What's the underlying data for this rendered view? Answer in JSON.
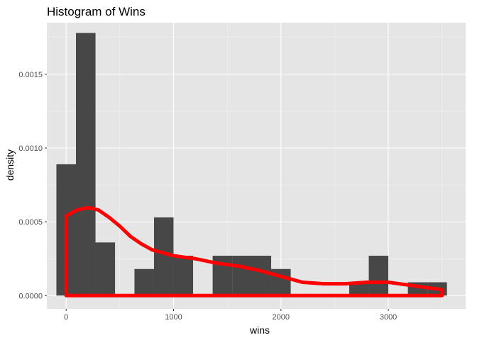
{
  "chart_data": {
    "type": "bar",
    "title": "Histogram of Wins",
    "xlabel": "wins",
    "ylabel": "density",
    "xlim": [
      -180,
      3720
    ],
    "ylim": [
      -9e-05,
      0.00185
    ],
    "x_ticks": [
      0,
      1000,
      2000,
      3000
    ],
    "x_tick_labels": [
      "0",
      "1000",
      "2000",
      "3000"
    ],
    "y_ticks": [
      0.0,
      0.0005,
      0.001,
      0.0015
    ],
    "y_tick_labels": [
      "0.0000",
      "0.0005",
      "0.0010",
      "0.0015"
    ],
    "grid": true,
    "bin_width": 182,
    "bins": [
      {
        "start": -91,
        "end": 91,
        "density": 0.00089
      },
      {
        "start": 91,
        "end": 273,
        "density": 0.00178
      },
      {
        "start": 273,
        "end": 455,
        "density": 0.00036
      },
      {
        "start": 636,
        "end": 818,
        "density": 0.00018
      },
      {
        "start": 818,
        "end": 1000,
        "density": 0.00053
      },
      {
        "start": 1000,
        "end": 1182,
        "density": 0.00027
      },
      {
        "start": 1364,
        "end": 1546,
        "density": 0.00027
      },
      {
        "start": 1546,
        "end": 1727,
        "density": 0.00027
      },
      {
        "start": 1727,
        "end": 1909,
        "density": 0.00027
      },
      {
        "start": 1909,
        "end": 2091,
        "density": 0.00018
      },
      {
        "start": 2636,
        "end": 2818,
        "density": 9e-05
      },
      {
        "start": 2818,
        "end": 3000,
        "density": 0.00027
      },
      {
        "start": 3182,
        "end": 3364,
        "density": 9e-05
      },
      {
        "start": 3364,
        "end": 3546,
        "density": 9e-05
      }
    ],
    "density_curve": {
      "color": "#ff0000",
      "x": [
        0,
        50,
        100,
        150,
        200,
        250,
        300,
        400,
        500,
        600,
        700,
        800,
        900,
        1000,
        1200,
        1400,
        1600,
        1800,
        2000,
        2200,
        2400,
        2600,
        2800,
        3000,
        3200,
        3400,
        3500
      ],
      "y": [
        0.00054,
        0.00056,
        0.00058,
        0.000588,
        0.000595,
        0.00059,
        0.00058,
        0.00053,
        0.00047,
        0.0004,
        0.00035,
        0.00031,
        0.00029,
        0.00027,
        0.00025,
        0.00022,
        0.0002,
        0.00017,
        0.00013,
        9e-05,
        8e-05,
        8e-05,
        9e-05,
        9e-05,
        7e-05,
        5e-05,
        4e-05
      ]
    },
    "bar_color": "#474747",
    "panel_color": "#e5e5e5"
  }
}
